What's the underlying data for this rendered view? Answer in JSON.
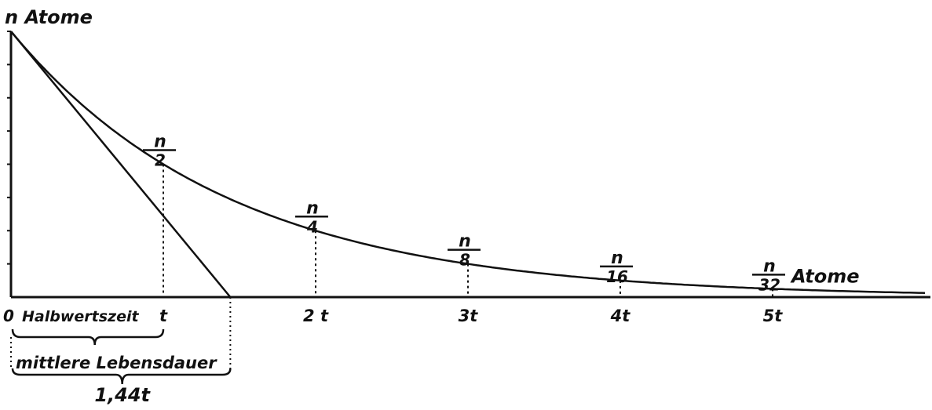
{
  "chart_data": {
    "type": "line",
    "ylabel": "n Atome",
    "xunit": "t",
    "x_ticks": [
      {
        "x": 1,
        "label": "t"
      },
      {
        "x": 2,
        "label": "2 t"
      },
      {
        "x": 3,
        "label": "3t"
      },
      {
        "x": 4,
        "label": "4t"
      },
      {
        "x": 5,
        "label": "5t"
      }
    ],
    "origin_label": "0",
    "xlim": [
      0,
      6
    ],
    "ylim": [
      0,
      1
    ],
    "y_tick_step": 0.125,
    "curve": {
      "type": "exponential decay",
      "y0": 1,
      "half_life": 1
    },
    "points": [
      {
        "x": 1,
        "y": 0.5,
        "num": "n",
        "den": "2"
      },
      {
        "x": 2,
        "y": 0.25,
        "num": "n",
        "den": "4"
      },
      {
        "x": 3,
        "y": 0.125,
        "num": "n",
        "den": "8"
      },
      {
        "x": 4,
        "y": 0.0625,
        "num": "n",
        "den": "16"
      },
      {
        "x": 5,
        "y": 0.03125,
        "num": "n",
        "den": "32"
      }
    ],
    "last_point_suffix": "Atome",
    "tangent": {
      "from": [
        0,
        1
      ],
      "to": [
        1.44,
        0
      ]
    },
    "annotations": {
      "half_life": "Halbwertszeit",
      "mean_life": "mittlere Lebensdauer",
      "mean_life_value": "1,44t"
    },
    "line_color": "#111111"
  }
}
